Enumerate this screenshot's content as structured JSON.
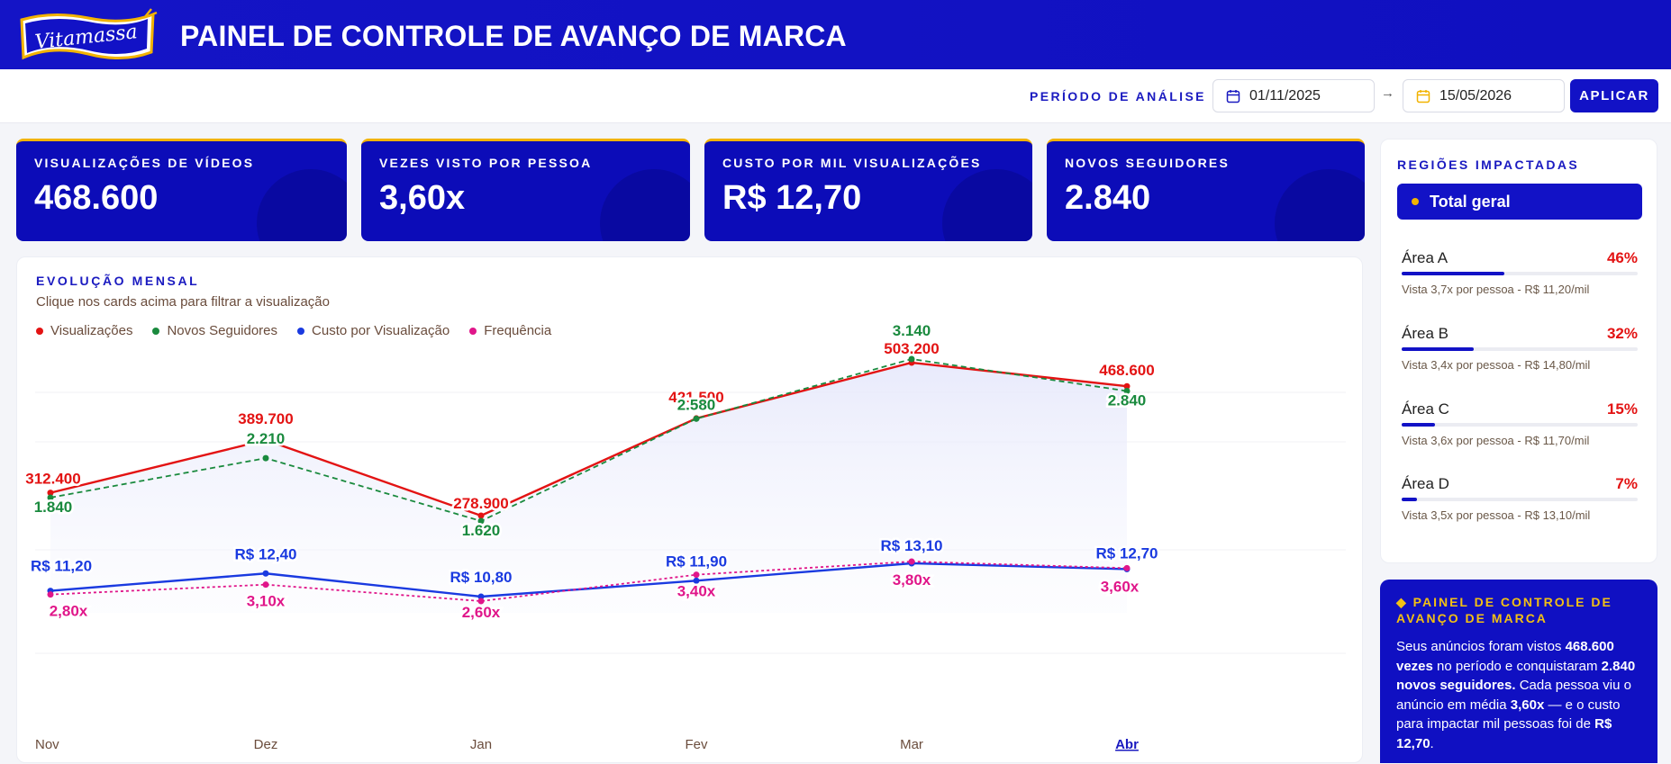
{
  "brand": {
    "logo_text": "Vitamassa",
    "title": "PAINEL DE CONTROLE DE AVANÇO DE MARCA"
  },
  "filter": {
    "period_label": "PERÍODO DE ANÁLISE",
    "start_date": "01/11/2025",
    "arrow": "→",
    "end_date": "15/05/2026",
    "apply_label": "APLICAR"
  },
  "kpis": [
    {
      "label": "VISUALIZAÇÕES DE VÍDEOS",
      "value": "468.600"
    },
    {
      "label": "VEZES VISTO POR PESSOA",
      "value": "3,60x"
    },
    {
      "label": "CUSTO POR MIL VISUALIZAÇÕES",
      "value": "R$ 12,70"
    },
    {
      "label": "NOVOS SEGUIDORES",
      "value": "2.840"
    }
  ],
  "chart": {
    "title": "EVOLUÇÃO MENSAL",
    "subtitle": "Clique nos cards acima para filtrar a visualização",
    "legend": [
      {
        "name": "Visualizações",
        "color": "#e31313"
      },
      {
        "name": "Novos Seguidores",
        "color": "#1a8a3e"
      },
      {
        "name": "Custo por Visualização",
        "color": "#1a3ae0"
      },
      {
        "name": "Frequência",
        "color": "#e0168a"
      }
    ]
  },
  "chart_data": {
    "type": "line",
    "categories": [
      "Nov",
      "Dez",
      "Jan",
      "Fev",
      "Mar",
      "Abr"
    ],
    "selected_category": "Abr",
    "series": [
      {
        "name": "Visualizações",
        "color": "#e31313",
        "values": [
          312400,
          389700,
          278900,
          421500,
          503200,
          468600
        ],
        "labels": [
          "312.400",
          "389.700",
          "278.900",
          "421.500",
          "503.200",
          "468.600"
        ]
      },
      {
        "name": "Novos Seguidores",
        "color": "#1a8a3e",
        "dashed": true,
        "values": [
          1840,
          2210,
          1620,
          2580,
          3140,
          2840
        ],
        "labels": [
          "1.840",
          "2.210",
          "1.620",
          "2.580",
          "3.140",
          "2.840"
        ]
      },
      {
        "name": "Custo por Visualização",
        "color": "#1a3ae0",
        "values": [
          11.2,
          12.4,
          10.8,
          11.9,
          13.1,
          12.7
        ],
        "labels": [
          "R$ 11,20",
          "R$ 12,40",
          "R$ 10,80",
          "R$ 11,90",
          "R$ 13,10",
          "R$ 12,70"
        ]
      },
      {
        "name": "Frequência",
        "color": "#e0168a",
        "dashed": true,
        "values": [
          2.8,
          3.1,
          2.6,
          3.4,
          3.8,
          3.6
        ],
        "labels": [
          "2,80x",
          "3,10x",
          "2,60x",
          "3,40x",
          "3,80x",
          "3,60x"
        ]
      }
    ]
  },
  "regions": {
    "title": "REGIÕES IMPACTADAS",
    "total_label": "Total geral",
    "areas": [
      {
        "name": "Área A",
        "pct": "46%",
        "share": 0.46,
        "detail": "Vista 3,7x por pessoa - R$ 11,20/mil"
      },
      {
        "name": "Área B",
        "pct": "32%",
        "share": 0.32,
        "detail": "Vista 3,4x por pessoa - R$ 14,80/mil"
      },
      {
        "name": "Área C",
        "pct": "15%",
        "share": 0.15,
        "detail": "Vista 3,6x por pessoa - R$ 11,70/mil"
      },
      {
        "name": "Área D",
        "pct": "7%",
        "share": 0.07,
        "detail": "Vista 3,5x por pessoa - R$ 13,10/mil"
      }
    ]
  },
  "summary": {
    "title": "◆ PAINEL DE CONTROLE DE AVANÇO DE MARCA",
    "parts": [
      {
        "t": "Seus anúncios foram vistos ",
        "b": false
      },
      {
        "t": "468.600 vezes",
        "b": true
      },
      {
        "t": " no período e conquistaram ",
        "b": false
      },
      {
        "t": "2.840 novos seguidores.",
        "b": true
      },
      {
        "t": " Cada pessoa viu o anúncio em média ",
        "b": false
      },
      {
        "t": "3,60x",
        "b": true
      },
      {
        "t": " — e o custo para impactar mil pessoas foi de ",
        "b": false
      },
      {
        "t": "R$ 12,70",
        "b": true
      },
      {
        "t": ".",
        "b": false
      }
    ]
  },
  "colors": {
    "brand_blue": "#1212c6",
    "accent_yellow": "#f2b300",
    "alert_red": "#e31313"
  }
}
